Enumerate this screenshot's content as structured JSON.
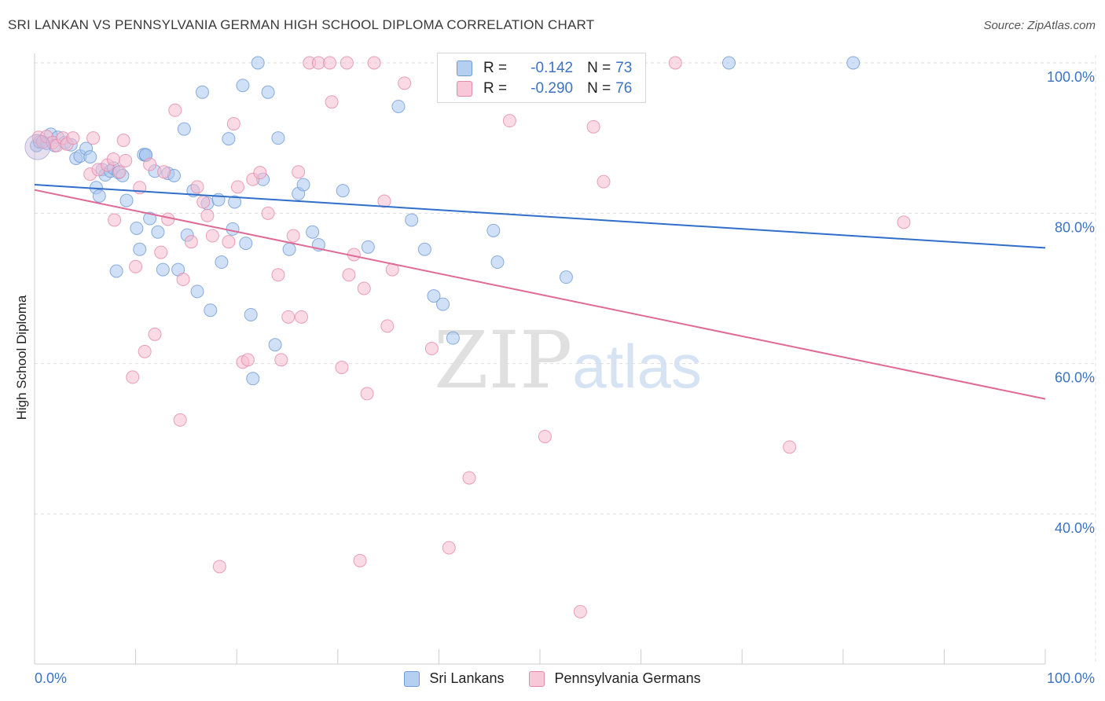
{
  "title": "SRI LANKAN VS PENNSYLVANIA GERMAN HIGH SCHOOL DIPLOMA CORRELATION CHART",
  "source": "Source: ZipAtlas.com",
  "watermark": {
    "zip": "ZIP",
    "atlas": "atlas"
  },
  "legend": {
    "r_label": "R =",
    "n_label": "N =",
    "blue": {
      "r": "-0.142",
      "n": "73"
    },
    "pink": {
      "r": "-0.290",
      "n": "76"
    }
  },
  "bottom_legend": {
    "blue": "Sri Lankans",
    "pink": "Pennsylvania Germans"
  },
  "colors": {
    "blue_fill": "#a9c7ee",
    "blue_stroke": "#6f9bd6",
    "blue_line": "#2f6fcb",
    "pink_fill": "#f5bcd0",
    "pink_stroke": "#e58aaa",
    "pink_line": "#e06a95",
    "axis_text": "#3b73c7",
    "grid": "#dddddd"
  },
  "chart_data": {
    "type": "scatter",
    "title": "SRI LANKAN VS PENNSYLVANIA GERMAN HIGH SCHOOL DIPLOMA CORRELATION CHART",
    "ylabel": "High School Diploma",
    "xlabel": "",
    "xlim": [
      0,
      100
    ],
    "ylim": [
      22,
      102
    ],
    "x_tick_labels": [
      "0.0%",
      "100.0%"
    ],
    "y_ticks": [
      40,
      60,
      80,
      100
    ],
    "y_tick_labels": [
      "40.0%",
      "60.0%",
      "80.0%",
      "100.0%"
    ],
    "grid": true,
    "series": [
      {
        "name": "Sri Lankans",
        "color": "#a9c7ee",
        "r": -0.142,
        "n": 73,
        "trend": [
          [
            0,
            83.8
          ],
          [
            100,
            75.4
          ]
        ],
        "points": [
          [
            0.2,
            89.0
          ],
          [
            0.5,
            89.5
          ],
          [
            1.2,
            89.3
          ],
          [
            1.6,
            90.5
          ],
          [
            2.0,
            89.0
          ],
          [
            2.3,
            90.1
          ],
          [
            3.0,
            89.4
          ],
          [
            3.6,
            89.1
          ],
          [
            4.1,
            87.3
          ],
          [
            4.5,
            87.6
          ],
          [
            5.1,
            88.6
          ],
          [
            5.5,
            87.5
          ],
          [
            6.1,
            83.4
          ],
          [
            6.4,
            82.3
          ],
          [
            6.7,
            85.8
          ],
          [
            7.0,
            85.1
          ],
          [
            7.5,
            85.6
          ],
          [
            7.8,
            86.0
          ],
          [
            8.3,
            85.4
          ],
          [
            8.7,
            85.0
          ],
          [
            9.1,
            81.7
          ],
          [
            8.1,
            72.3
          ],
          [
            10.1,
            78.0
          ],
          [
            10.4,
            75.2
          ],
          [
            10.8,
            87.8
          ],
          [
            11.0,
            87.7
          ],
          [
            11.4,
            79.3
          ],
          [
            11.9,
            85.6
          ],
          [
            12.2,
            77.5
          ],
          [
            12.7,
            72.5
          ],
          [
            13.2,
            85.3
          ],
          [
            13.8,
            85.0
          ],
          [
            14.2,
            72.5
          ],
          [
            14.8,
            91.2
          ],
          [
            15.1,
            77.1
          ],
          [
            15.7,
            83.0
          ],
          [
            16.1,
            69.6
          ],
          [
            16.6,
            96.1
          ],
          [
            17.1,
            81.3
          ],
          [
            17.4,
            67.1
          ],
          [
            18.2,
            81.8
          ],
          [
            18.5,
            73.5
          ],
          [
            19.2,
            89.9
          ],
          [
            19.6,
            77.9
          ],
          [
            19.8,
            81.5
          ],
          [
            20.6,
            97.0
          ],
          [
            20.9,
            76.0
          ],
          [
            21.4,
            66.5
          ],
          [
            21.6,
            58.0
          ],
          [
            22.1,
            100.0
          ],
          [
            22.6,
            84.5
          ],
          [
            23.1,
            96.1
          ],
          [
            23.8,
            62.5
          ],
          [
            24.1,
            90.0
          ],
          [
            25.2,
            75.2
          ],
          [
            26.1,
            82.6
          ],
          [
            26.6,
            83.8
          ],
          [
            27.5,
            77.5
          ],
          [
            28.1,
            75.8
          ],
          [
            30.5,
            83.0
          ],
          [
            33.0,
            75.5
          ],
          [
            37.3,
            79.1
          ],
          [
            38.6,
            75.2
          ],
          [
            39.5,
            69.0
          ],
          [
            40.4,
            67.9
          ],
          [
            41.4,
            63.4
          ],
          [
            45.4,
            77.7
          ],
          [
            45.8,
            73.5
          ],
          [
            52.6,
            71.5
          ],
          [
            68.7,
            100.0
          ],
          [
            81.0,
            100.0
          ],
          [
            36.0,
            94.2
          ],
          [
            11.0,
            87.8
          ]
        ]
      },
      {
        "name": "Pennsylvania Germans",
        "color": "#f5bcd0",
        "r": -0.29,
        "n": 76,
        "trend": [
          [
            0,
            83.1
          ],
          [
            100,
            55.3
          ]
        ],
        "points": [
          [
            0.4,
            90.1
          ],
          [
            0.8,
            89.5
          ],
          [
            1.2,
            90.2
          ],
          [
            1.8,
            89.4
          ],
          [
            2.2,
            89.0
          ],
          [
            2.8,
            90.0
          ],
          [
            3.2,
            89.2
          ],
          [
            3.8,
            90.0
          ],
          [
            5.5,
            85.2
          ],
          [
            5.8,
            90.0
          ],
          [
            6.3,
            85.8
          ],
          [
            7.2,
            86.4
          ],
          [
            7.8,
            87.2
          ],
          [
            7.9,
            79.1
          ],
          [
            8.4,
            85.5
          ],
          [
            8.8,
            89.7
          ],
          [
            9.0,
            87.0
          ],
          [
            9.7,
            58.2
          ],
          [
            10.0,
            72.9
          ],
          [
            10.4,
            83.4
          ],
          [
            10.9,
            61.6
          ],
          [
            11.4,
            86.5
          ],
          [
            11.9,
            63.9
          ],
          [
            12.5,
            74.8
          ],
          [
            12.8,
            85.5
          ],
          [
            13.2,
            79.2
          ],
          [
            13.9,
            93.7
          ],
          [
            14.4,
            52.5
          ],
          [
            14.7,
            71.2
          ],
          [
            15.5,
            76.2
          ],
          [
            16.1,
            83.5
          ],
          [
            16.7,
            81.5
          ],
          [
            17.1,
            79.7
          ],
          [
            17.6,
            77.0
          ],
          [
            18.3,
            33.0
          ],
          [
            19.2,
            76.2
          ],
          [
            19.7,
            91.9
          ],
          [
            20.1,
            83.5
          ],
          [
            20.6,
            60.2
          ],
          [
            21.1,
            60.5
          ],
          [
            21.6,
            84.5
          ],
          [
            22.3,
            85.4
          ],
          [
            23.1,
            80.0
          ],
          [
            24.1,
            71.8
          ],
          [
            24.4,
            60.5
          ],
          [
            25.1,
            66.2
          ],
          [
            25.6,
            77.0
          ],
          [
            26.1,
            85.5
          ],
          [
            26.4,
            66.2
          ],
          [
            27.2,
            100.0
          ],
          [
            28.1,
            100.0
          ],
          [
            29.2,
            100.0
          ],
          [
            29.4,
            94.8
          ],
          [
            30.4,
            59.5
          ],
          [
            30.9,
            100.0
          ],
          [
            31.1,
            71.8
          ],
          [
            31.6,
            74.5
          ],
          [
            32.2,
            33.8
          ],
          [
            32.6,
            70.0
          ],
          [
            32.9,
            56.0
          ],
          [
            33.6,
            100.0
          ],
          [
            34.6,
            81.6
          ],
          [
            34.9,
            65.0
          ],
          [
            35.4,
            72.5
          ],
          [
            36.6,
            97.3
          ],
          [
            39.3,
            62.0
          ],
          [
            41.0,
            35.5
          ],
          [
            43.0,
            44.8
          ],
          [
            47.0,
            92.3
          ],
          [
            50.5,
            50.3
          ],
          [
            54.0,
            27.0
          ],
          [
            55.3,
            91.5
          ],
          [
            56.3,
            84.2
          ],
          [
            63.4,
            100.0
          ],
          [
            74.7,
            48.9
          ],
          [
            86.0,
            78.8
          ]
        ]
      }
    ]
  }
}
